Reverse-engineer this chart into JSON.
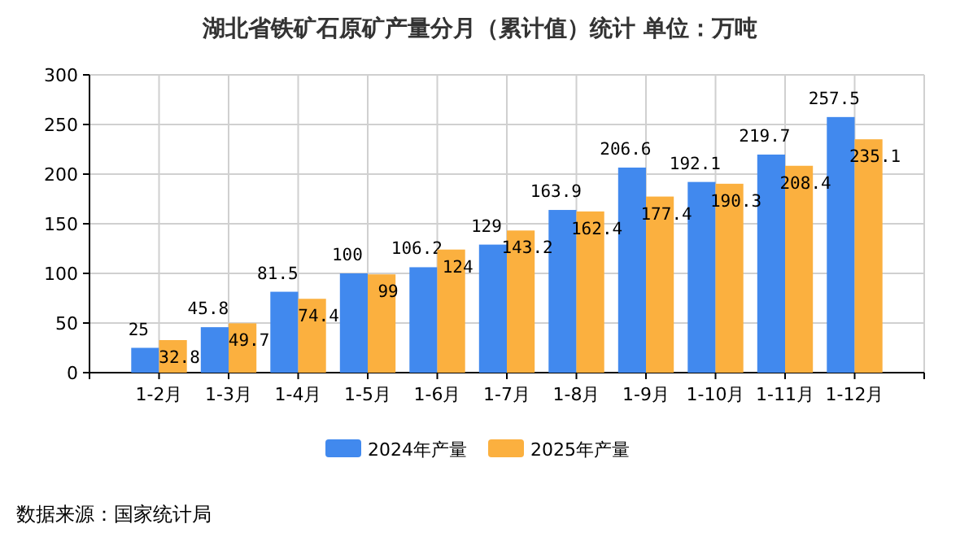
{
  "chart_data": {
    "type": "bar",
    "title": "湖北省铁矿石原矿产量分月（累计值）统计  单位：万吨",
    "categories": [
      null,
      "1-2月",
      "1-3月",
      "1-4月",
      "1-5月",
      "1-6月",
      "1-7月",
      "1-8月",
      "1-9月",
      "1-10月",
      "1-11月",
      "1-12月"
    ],
    "series": [
      {
        "name": "2024年产量",
        "color": "#4189ee",
        "values": [
          null,
          25,
          45.8,
          81.5,
          100,
          106.2,
          129,
          163.9,
          206.6,
          192.1,
          219.7,
          257.5
        ]
      },
      {
        "name": "2025年产量",
        "color": "#fbb03f",
        "values": [
          null,
          32.8,
          49.7,
          74.4,
          99,
          124,
          143.2,
          162.4,
          177.4,
          190.3,
          208.4,
          235.1
        ]
      }
    ],
    "ylim": [
      0,
      300
    ],
    "yticks": [
      0,
      50,
      100,
      150,
      200,
      250,
      300
    ],
    "grid": true,
    "legend": "bottom",
    "data_labels": true,
    "annotations": [
      "数据来源：国家统计局"
    ]
  }
}
